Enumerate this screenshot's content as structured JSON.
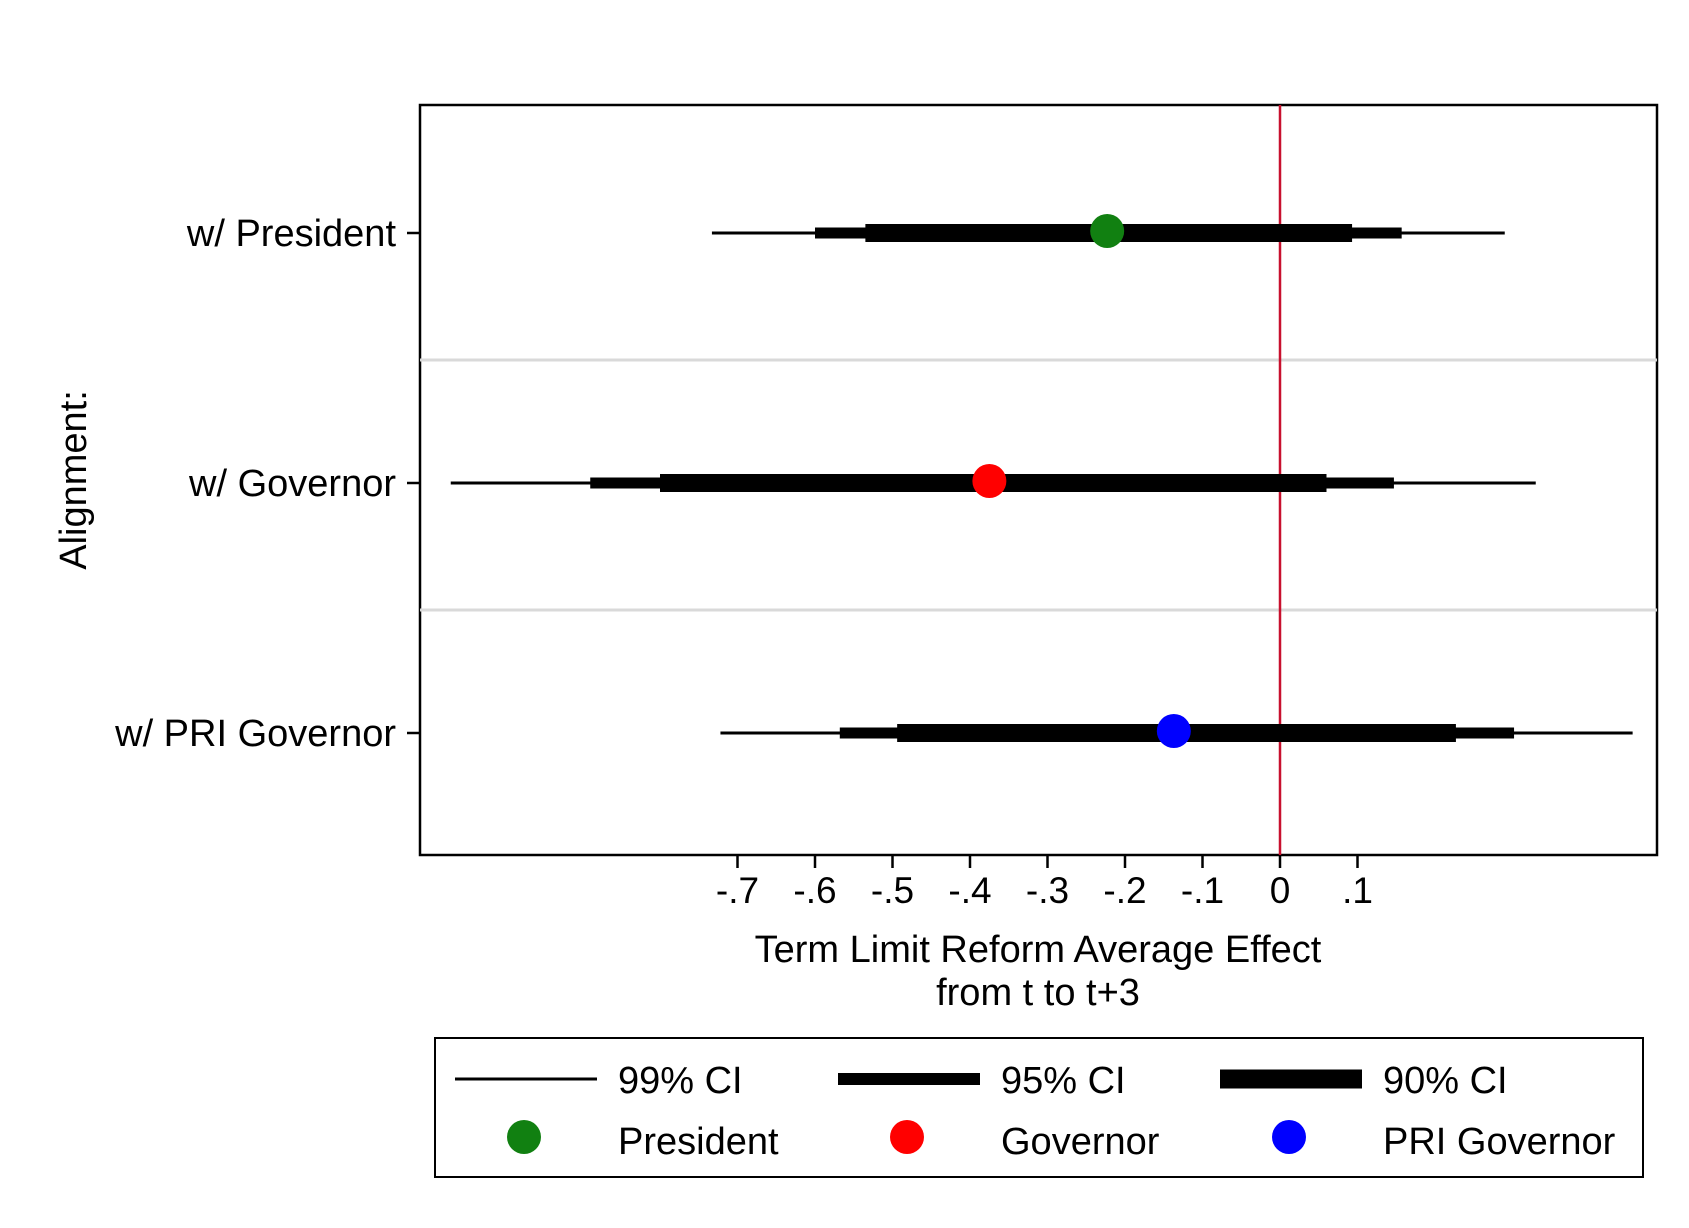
{
  "chart_data": {
    "type": "coefficient-plot",
    "ylabel": "Alignment:",
    "xlabel_lines": [
      "Term Limit Reform Average Effect",
      "from t to t+3"
    ],
    "xlim": [
      -1.1,
      0.5
    ],
    "x_ticks": [
      -0.7,
      -0.6,
      -0.5,
      -0.4,
      -0.3,
      -0.2,
      -0.1,
      0,
      0.1
    ],
    "x_tick_labels": [
      "-.7",
      "-.6",
      "-.5",
      "-.4",
      "-.3",
      "-.2",
      "-.1",
      "0",
      ".1"
    ],
    "reference_line": {
      "x": 0,
      "color": "#c8102e"
    },
    "grid": "horizontal separators between categories",
    "categories": [
      "w/ President",
      "w/ Governor",
      "w/ PRI Governor"
    ],
    "series": [
      {
        "name": "President",
        "color": "#118011",
        "estimate": -0.223,
        "ci99": [
          -0.733,
          0.29
        ],
        "ci95": [
          -0.6,
          0.157
        ],
        "ci90": [
          -0.535,
          0.093
        ]
      },
      {
        "name": "Governor",
        "color": "#ff0000",
        "estimate": -0.375,
        "ci99": [
          -1.07,
          0.33
        ],
        "ci95": [
          -0.89,
          0.147
        ],
        "ci90": [
          -0.8,
          0.06
        ]
      },
      {
        "name": "PRI Governor",
        "color": "#0000ff",
        "estimate": -0.137,
        "ci99": [
          -0.722,
          0.455
        ],
        "ci95": [
          -0.568,
          0.302
        ],
        "ci90": [
          -0.494,
          0.227
        ]
      }
    ],
    "legend": {
      "placement": "bottom",
      "line_entries": [
        "99% CI",
        "95% CI",
        "90% CI"
      ],
      "marker_entries": [
        "President",
        "Governor",
        "PRI Governor"
      ]
    }
  }
}
